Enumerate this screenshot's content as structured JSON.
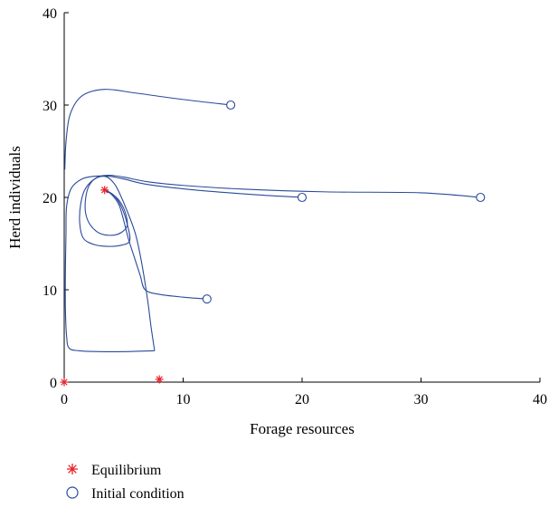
{
  "chart_data": {
    "type": "line",
    "title": "",
    "xlabel": "Forage resources",
    "ylabel": "Herd individuals",
    "xlim": [
      0,
      40
    ],
    "ylim": [
      0,
      40
    ],
    "xticks": [
      "0",
      "10",
      "20",
      "30",
      "40"
    ],
    "yticks": [
      "0",
      "10",
      "20",
      "30",
      "40"
    ],
    "grid": false,
    "legend_placement": "bottom-left",
    "colors": {
      "trajectory": "#2b4a9a",
      "equilibrium": "#e8202a",
      "initial": "#2b4a9a"
    },
    "legend": [
      {
        "label": "Equilibrium",
        "marker": "asterisk"
      },
      {
        "label": "Initial condition",
        "marker": "circle"
      }
    ],
    "equilibria": [
      {
        "x": 0,
        "y": 0
      },
      {
        "x": 8,
        "y": 0.3
      },
      {
        "x": 3.4,
        "y": 20.8
      }
    ],
    "initial_conditions": [
      {
        "x": 14,
        "y": 30
      },
      {
        "x": 20,
        "y": 20
      },
      {
        "x": 35,
        "y": 20
      },
      {
        "x": 12,
        "y": 9
      }
    ],
    "trajectories": [
      {
        "points": [
          [
            14,
            30
          ],
          [
            10,
            30.6
          ],
          [
            6,
            31.3
          ],
          [
            3.4,
            31.7
          ],
          [
            1.5,
            31
          ],
          [
            0.5,
            29
          ],
          [
            0.15,
            26
          ],
          [
            0.05,
            23
          ]
        ]
      },
      {
        "points": [
          [
            35,
            20
          ],
          [
            30,
            20.5
          ],
          [
            22,
            20.6
          ],
          [
            15,
            20.9
          ],
          [
            10,
            21.3
          ],
          [
            7,
            21.7
          ],
          [
            5,
            22.2
          ],
          [
            3.8,
            22.4
          ],
          [
            2.8,
            22.2
          ],
          [
            2.1,
            21.3
          ],
          [
            1.8,
            19.9
          ],
          [
            1.8,
            18.3
          ],
          [
            2.2,
            17
          ],
          [
            3,
            16.1
          ],
          [
            4,
            15.9
          ],
          [
            4.8,
            16.2
          ],
          [
            5.3,
            17
          ],
          [
            5.1,
            18.5
          ],
          [
            4.6,
            19.7
          ],
          [
            4,
            20.4
          ],
          [
            3.6,
            20.7
          ],
          [
            3.4,
            20.8
          ]
        ]
      },
      {
        "points": [
          [
            20,
            20
          ],
          [
            16,
            20.3
          ],
          [
            11,
            20.8
          ],
          [
            7,
            21.4
          ],
          [
            5,
            22
          ],
          [
            3.7,
            22.3
          ],
          [
            2.7,
            22.1
          ],
          [
            1.8,
            21
          ],
          [
            1.4,
            19.4
          ],
          [
            1.3,
            17.3
          ],
          [
            1.6,
            15.6
          ],
          [
            2.5,
            14.9
          ],
          [
            3.6,
            14.7
          ],
          [
            4.7,
            14.8
          ],
          [
            5.5,
            15.3
          ],
          [
            5.3,
            17.1
          ],
          [
            4.8,
            19
          ],
          [
            4.2,
            20.2
          ],
          [
            3.7,
            20.6
          ],
          [
            3.4,
            20.8
          ]
        ]
      },
      {
        "points": [
          [
            12,
            9
          ],
          [
            10,
            9.2
          ],
          [
            8,
            9.5
          ],
          [
            6.8,
            10
          ],
          [
            6.4,
            11.5
          ],
          [
            5.9,
            13.5
          ],
          [
            5.4,
            15.5
          ],
          [
            5,
            17.5
          ],
          [
            4.6,
            19.2
          ],
          [
            4,
            20.3
          ],
          [
            3.5,
            20.7
          ],
          [
            3.4,
            20.8
          ]
        ]
      },
      {
        "points": [
          [
            7.6,
            3.4
          ],
          [
            5,
            3.3
          ],
          [
            3,
            3.3
          ],
          [
            1.2,
            3.4
          ],
          [
            0.4,
            3.7
          ],
          [
            0.2,
            5
          ],
          [
            0.1,
            8
          ],
          [
            0.1,
            12
          ],
          [
            0.15,
            16
          ],
          [
            0.2,
            19
          ],
          [
            0.6,
            21
          ],
          [
            1.5,
            22
          ],
          [
            2.6,
            22.3
          ],
          [
            3.6,
            22.2
          ],
          [
            4.2,
            21.5
          ],
          [
            4.6,
            20.6
          ],
          [
            5.3,
            18.5
          ],
          [
            6,
            16
          ],
          [
            6.5,
            13
          ],
          [
            7,
            9
          ],
          [
            7.3,
            6
          ],
          [
            7.6,
            3.4
          ]
        ]
      }
    ]
  }
}
